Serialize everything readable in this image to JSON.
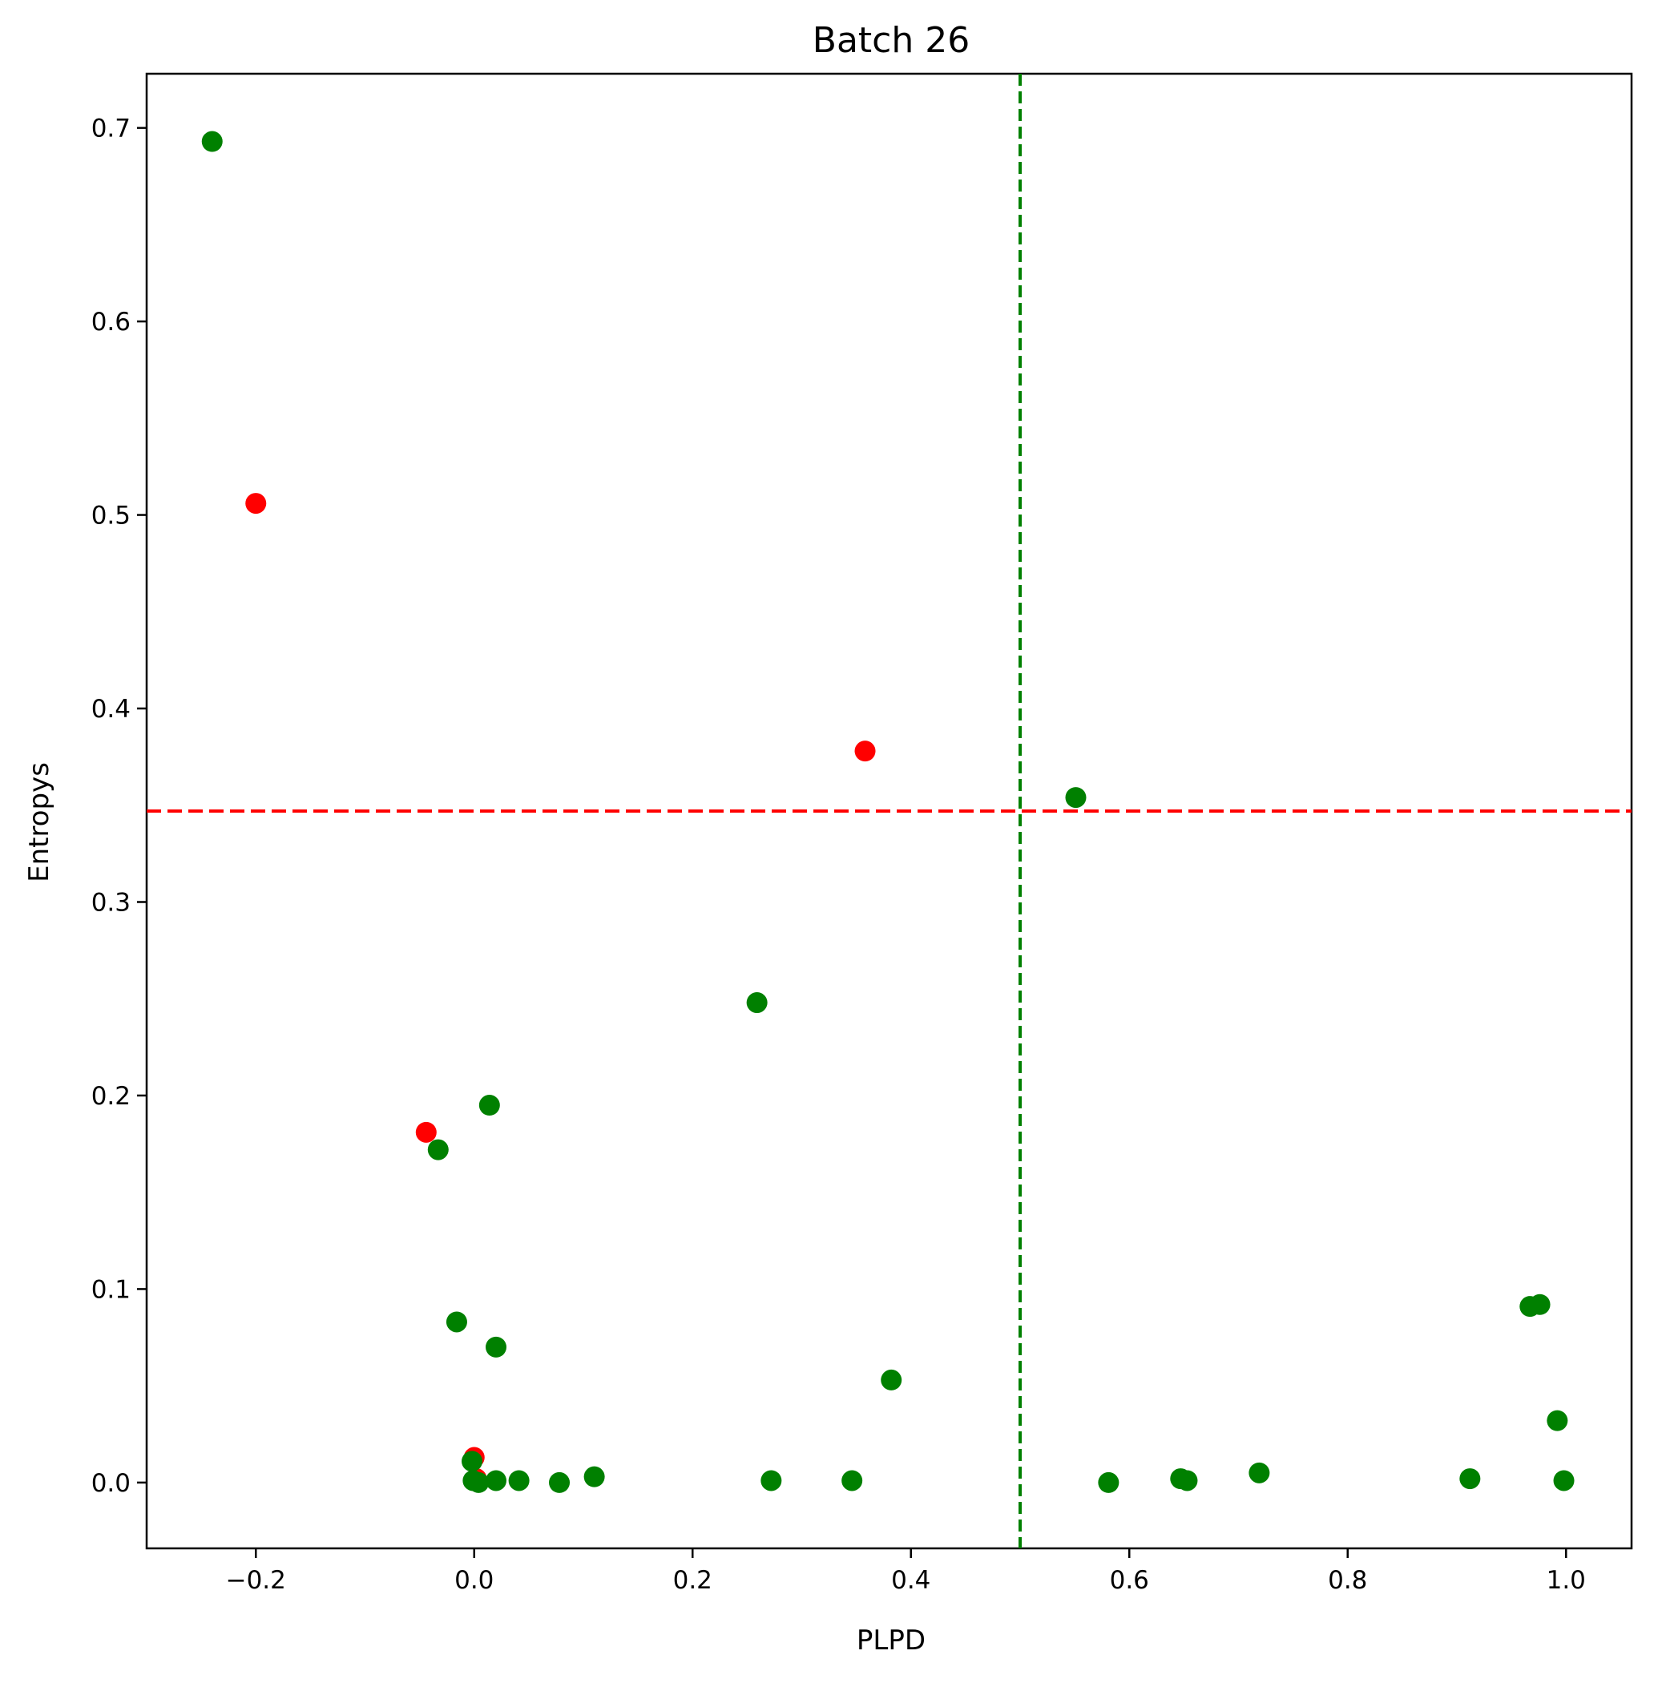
{
  "chart_data": {
    "type": "scatter",
    "title": "Batch 26",
    "xlabel": "PLPD",
    "ylabel": "Entropys",
    "xlim": [
      -0.3,
      1.06
    ],
    "ylim": [
      -0.034,
      0.728
    ],
    "xticks": [
      -0.2,
      0.0,
      0.2,
      0.4,
      0.6,
      0.8,
      1.0
    ],
    "xtick_labels": [
      "−0.2",
      "0.0",
      "0.2",
      "0.4",
      "0.6",
      "0.8",
      "1.0"
    ],
    "yticks": [
      0.0,
      0.1,
      0.2,
      0.3,
      0.4,
      0.5,
      0.6,
      0.7
    ],
    "ytick_labels": [
      "0.0",
      "0.1",
      "0.2",
      "0.3",
      "0.4",
      "0.5",
      "0.6",
      "0.7"
    ],
    "grid": false,
    "colors": {
      "green": "#008000",
      "red": "#ff0000"
    },
    "reference_lines": [
      {
        "orientation": "vertical",
        "value": 0.5,
        "color": "#008000",
        "style": "dashed"
      },
      {
        "orientation": "horizontal",
        "value": 0.347,
        "color": "#ff0000",
        "style": "dashed"
      }
    ],
    "series": [
      {
        "color": "#ff0000",
        "points": [
          {
            "x": -0.2,
            "y": 0.506
          },
          {
            "x": 0.358,
            "y": 0.378
          },
          {
            "x": -0.044,
            "y": 0.181
          },
          {
            "x": 0.0,
            "y": 0.013
          },
          {
            "x": 0.002,
            "y": 0.002
          }
        ]
      },
      {
        "color": "#008000",
        "points": [
          {
            "x": -0.24,
            "y": 0.693
          },
          {
            "x": 0.551,
            "y": 0.354
          },
          {
            "x": 0.259,
            "y": 0.248
          },
          {
            "x": 0.014,
            "y": 0.195
          },
          {
            "x": -0.033,
            "y": 0.172
          },
          {
            "x": -0.016,
            "y": 0.083
          },
          {
            "x": 0.02,
            "y": 0.07
          },
          {
            "x": 0.382,
            "y": 0.053
          },
          {
            "x": -0.002,
            "y": 0.011
          },
          {
            "x": -0.001,
            "y": 0.001
          },
          {
            "x": 0.004,
            "y": 0.0
          },
          {
            "x": 0.02,
            "y": 0.001
          },
          {
            "x": 0.041,
            "y": 0.001
          },
          {
            "x": 0.078,
            "y": 0.0
          },
          {
            "x": 0.11,
            "y": 0.003
          },
          {
            "x": 0.272,
            "y": 0.001
          },
          {
            "x": 0.346,
            "y": 0.001
          },
          {
            "x": 0.581,
            "y": 0.0
          },
          {
            "x": 0.647,
            "y": 0.002
          },
          {
            "x": 0.653,
            "y": 0.001
          },
          {
            "x": 0.719,
            "y": 0.005
          },
          {
            "x": 0.912,
            "y": 0.002
          },
          {
            "x": 0.967,
            "y": 0.091
          },
          {
            "x": 0.976,
            "y": 0.092
          },
          {
            "x": 0.992,
            "y": 0.032
          },
          {
            "x": 0.998,
            "y": 0.001
          }
        ]
      }
    ]
  }
}
